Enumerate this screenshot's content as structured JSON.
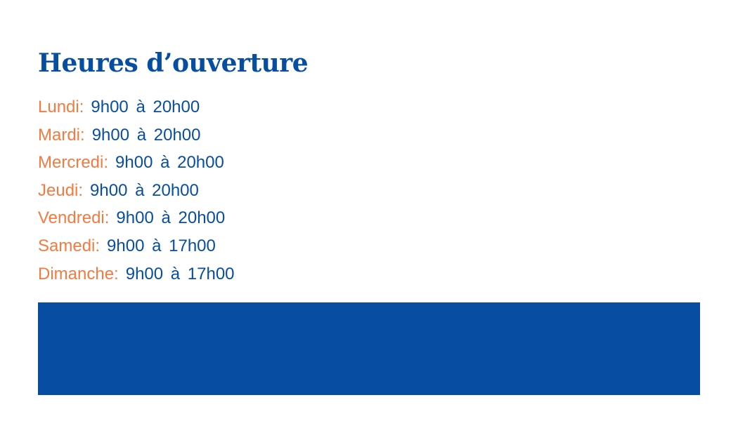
{
  "title": "Heures d’ouverture",
  "colors": {
    "primary": "#074ea2",
    "accent": "#f47a3f"
  },
  "hours": [
    {
      "day": "Lundi:",
      "time": "9h00 à 20h00"
    },
    {
      "day": "Mardi:",
      "time": "9h00 à 20h00"
    },
    {
      "day": "Mercredi:",
      "time": "9h00 à 20h00"
    },
    {
      "day": "Jeudi:",
      "time": "9h00 à 20h00"
    },
    {
      "day": "Vendredi:",
      "time": "9h00 à 20h00"
    },
    {
      "day": "Samedi:",
      "time": "9h00 à 17h00"
    },
    {
      "day": "Dimanche:",
      "time": "9h00 à 17h00"
    }
  ]
}
